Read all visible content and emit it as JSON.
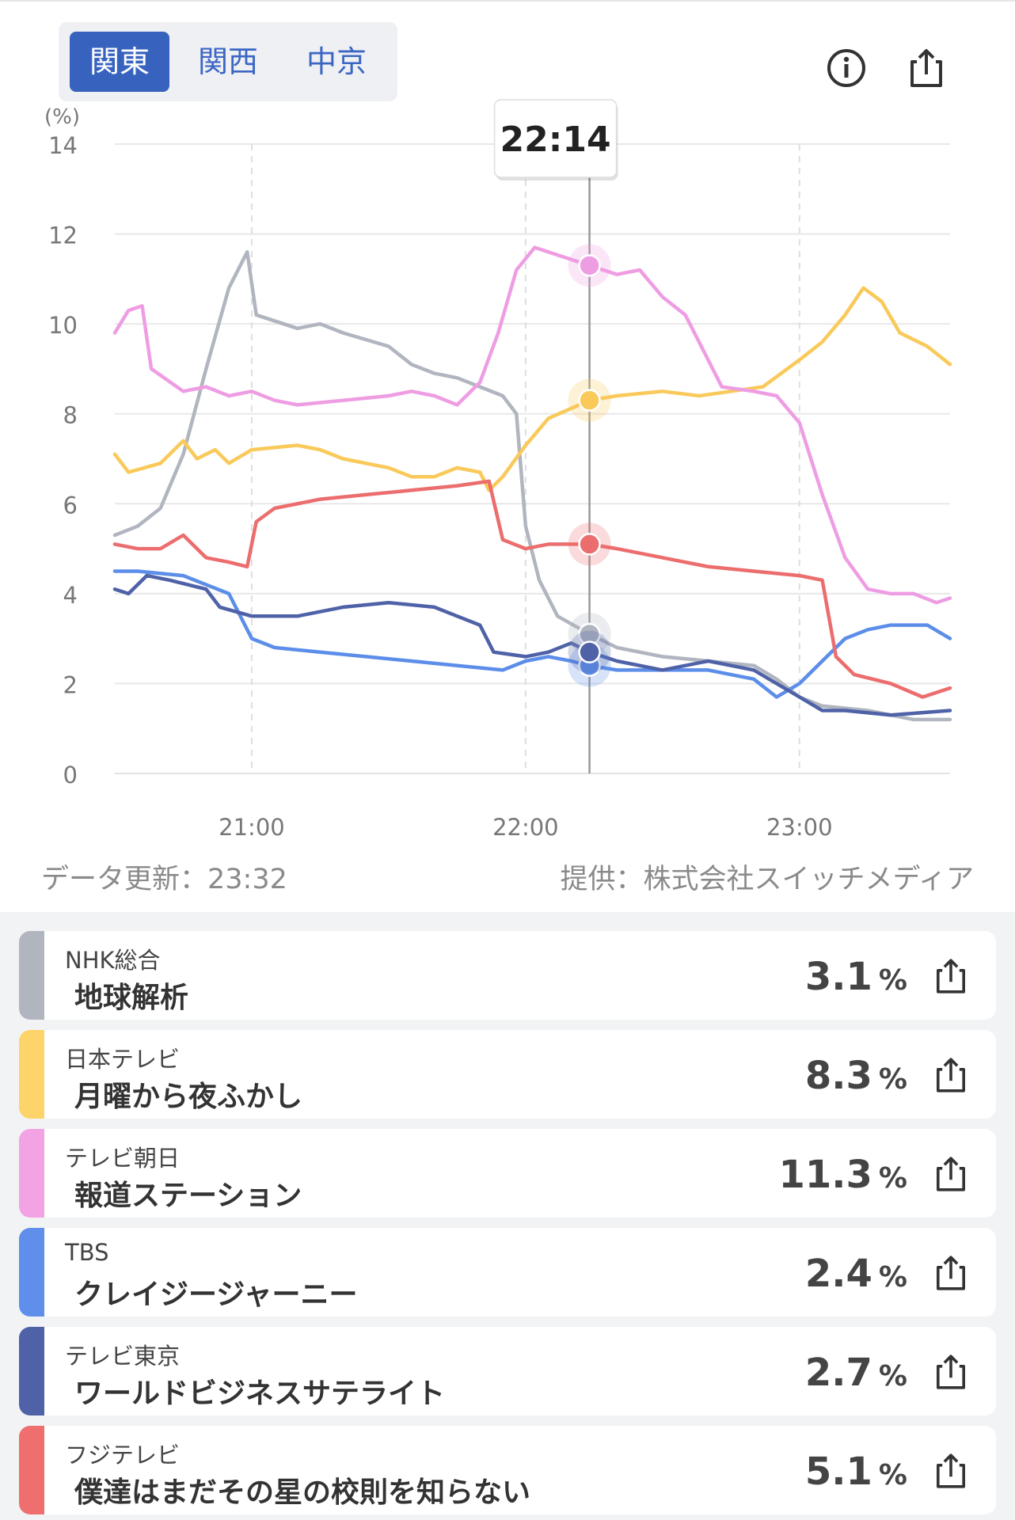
{
  "header": {
    "regions": [
      {
        "label": "関東",
        "active": true
      },
      {
        "label": "関西",
        "active": false
      },
      {
        "label": "中京",
        "active": false
      }
    ],
    "icons": [
      "info-icon",
      "share-icon"
    ]
  },
  "tooltip": {
    "time": "22:14"
  },
  "footer": {
    "update": "データ更新：23:32",
    "source": "提供：株式会社スイッチメディア"
  },
  "chart_data": {
    "type": "line",
    "ylabel": "(%)",
    "ylim": [
      0,
      14
    ],
    "yticks": [
      "0",
      "2",
      "4",
      "6",
      "8",
      "10",
      "12",
      "14"
    ],
    "xlim": [
      "20:30",
      "23:33"
    ],
    "xticks": [
      "21:00",
      "22:00",
      "23:00"
    ],
    "cursor": "22:14",
    "grid": true,
    "series": [
      {
        "name": "NHK総合",
        "color": "#b0b5bf",
        "cursor_value": 3.1,
        "points": [
          [
            "20:30",
            5.3
          ],
          [
            "20:35",
            5.5
          ],
          [
            "20:40",
            5.9
          ],
          [
            "20:45",
            7.1
          ],
          [
            "20:50",
            9.0
          ],
          [
            "20:55",
            10.8
          ],
          [
            "20:59",
            11.6
          ],
          [
            "21:01",
            10.2
          ],
          [
            "21:10",
            9.9
          ],
          [
            "21:15",
            10.0
          ],
          [
            "21:20",
            9.8
          ],
          [
            "21:30",
            9.5
          ],
          [
            "21:35",
            9.1
          ],
          [
            "21:40",
            8.9
          ],
          [
            "21:45",
            8.8
          ],
          [
            "21:50",
            8.6
          ],
          [
            "21:55",
            8.4
          ],
          [
            "21:58",
            8.0
          ],
          [
            "22:00",
            5.5
          ],
          [
            "22:03",
            4.3
          ],
          [
            "22:07",
            3.5
          ],
          [
            "22:14",
            3.1
          ],
          [
            "22:20",
            2.8
          ],
          [
            "22:30",
            2.6
          ],
          [
            "22:40",
            2.5
          ],
          [
            "22:50",
            2.4
          ],
          [
            "22:55",
            2.1
          ],
          [
            "23:00",
            1.7
          ],
          [
            "23:05",
            1.5
          ],
          [
            "23:15",
            1.4
          ],
          [
            "23:25",
            1.2
          ],
          [
            "23:33",
            1.2
          ]
        ]
      },
      {
        "name": "日本テレビ",
        "color": "#f9c95a",
        "cursor_value": 8.3,
        "points": [
          [
            "20:30",
            7.1
          ],
          [
            "20:33",
            6.7
          ],
          [
            "20:40",
            6.9
          ],
          [
            "20:45",
            7.4
          ],
          [
            "20:48",
            7.0
          ],
          [
            "20:52",
            7.2
          ],
          [
            "20:55",
            6.9
          ],
          [
            "21:00",
            7.2
          ],
          [
            "21:10",
            7.3
          ],
          [
            "21:15",
            7.2
          ],
          [
            "21:20",
            7.0
          ],
          [
            "21:30",
            6.8
          ],
          [
            "21:35",
            6.6
          ],
          [
            "21:40",
            6.6
          ],
          [
            "21:45",
            6.8
          ],
          [
            "21:50",
            6.7
          ],
          [
            "21:52",
            6.3
          ],
          [
            "21:55",
            6.6
          ],
          [
            "22:00",
            7.3
          ],
          [
            "22:05",
            7.9
          ],
          [
            "22:14",
            8.3
          ],
          [
            "22:20",
            8.4
          ],
          [
            "22:30",
            8.5
          ],
          [
            "22:38",
            8.4
          ],
          [
            "22:45",
            8.5
          ],
          [
            "22:52",
            8.6
          ],
          [
            "23:00",
            9.2
          ],
          [
            "23:05",
            9.6
          ],
          [
            "23:10",
            10.2
          ],
          [
            "23:14",
            10.8
          ],
          [
            "23:18",
            10.5
          ],
          [
            "23:22",
            9.8
          ],
          [
            "23:28",
            9.5
          ],
          [
            "23:33",
            9.1
          ]
        ]
      },
      {
        "name": "テレビ朝日",
        "color": "#ef9de3",
        "cursor_value": 11.3,
        "points": [
          [
            "20:30",
            9.8
          ],
          [
            "20:33",
            10.3
          ],
          [
            "20:36",
            10.4
          ],
          [
            "20:38",
            9.0
          ],
          [
            "20:45",
            8.5
          ],
          [
            "20:50",
            8.6
          ],
          [
            "20:55",
            8.4
          ],
          [
            "21:00",
            8.5
          ],
          [
            "21:05",
            8.3
          ],
          [
            "21:10",
            8.2
          ],
          [
            "21:20",
            8.3
          ],
          [
            "21:30",
            8.4
          ],
          [
            "21:35",
            8.5
          ],
          [
            "21:40",
            8.4
          ],
          [
            "21:45",
            8.2
          ],
          [
            "21:50",
            8.7
          ],
          [
            "21:54",
            9.8
          ],
          [
            "21:58",
            11.2
          ],
          [
            "22:02",
            11.7
          ],
          [
            "22:08",
            11.5
          ],
          [
            "22:14",
            11.3
          ],
          [
            "22:20",
            11.1
          ],
          [
            "22:25",
            11.2
          ],
          [
            "22:30",
            10.6
          ],
          [
            "22:35",
            10.2
          ],
          [
            "22:38",
            9.6
          ],
          [
            "22:43",
            8.6
          ],
          [
            "22:50",
            8.5
          ],
          [
            "22:55",
            8.4
          ],
          [
            "23:00",
            7.8
          ],
          [
            "23:05",
            6.2
          ],
          [
            "23:10",
            4.8
          ],
          [
            "23:15",
            4.1
          ],
          [
            "23:20",
            4.0
          ],
          [
            "23:25",
            4.0
          ],
          [
            "23:30",
            3.8
          ],
          [
            "23:33",
            3.9
          ]
        ]
      },
      {
        "name": "TBS",
        "color": "#5c8ee9",
        "cursor_value": 2.4,
        "points": [
          [
            "20:30",
            4.5
          ],
          [
            "20:35",
            4.5
          ],
          [
            "20:45",
            4.4
          ],
          [
            "20:55",
            4.0
          ],
          [
            "21:00",
            3.0
          ],
          [
            "21:05",
            2.8
          ],
          [
            "21:15",
            2.7
          ],
          [
            "21:25",
            2.6
          ],
          [
            "21:35",
            2.5
          ],
          [
            "21:45",
            2.4
          ],
          [
            "21:55",
            2.3
          ],
          [
            "22:00",
            2.5
          ],
          [
            "22:05",
            2.6
          ],
          [
            "22:10",
            2.5
          ],
          [
            "22:14",
            2.4
          ],
          [
            "22:20",
            2.3
          ],
          [
            "22:30",
            2.3
          ],
          [
            "22:40",
            2.3
          ],
          [
            "22:50",
            2.1
          ],
          [
            "22:55",
            1.7
          ],
          [
            "23:00",
            2.0
          ],
          [
            "23:05",
            2.5
          ],
          [
            "23:10",
            3.0
          ],
          [
            "23:15",
            3.2
          ],
          [
            "23:20",
            3.3
          ],
          [
            "23:28",
            3.3
          ],
          [
            "23:33",
            3.0
          ]
        ]
      },
      {
        "name": "テレビ東京",
        "color": "#4f62a8",
        "cursor_value": 2.7,
        "points": [
          [
            "20:30",
            4.1
          ],
          [
            "20:33",
            4.0
          ],
          [
            "20:37",
            4.4
          ],
          [
            "20:42",
            4.3
          ],
          [
            "20:50",
            4.1
          ],
          [
            "20:53",
            3.7
          ],
          [
            "21:00",
            3.5
          ],
          [
            "21:10",
            3.5
          ],
          [
            "21:20",
            3.7
          ],
          [
            "21:30",
            3.8
          ],
          [
            "21:40",
            3.7
          ],
          [
            "21:45",
            3.5
          ],
          [
            "21:50",
            3.3
          ],
          [
            "21:53",
            2.7
          ],
          [
            "22:00",
            2.6
          ],
          [
            "22:05",
            2.7
          ],
          [
            "22:10",
            2.9
          ],
          [
            "22:14",
            2.7
          ],
          [
            "22:20",
            2.5
          ],
          [
            "22:30",
            2.3
          ],
          [
            "22:40",
            2.5
          ],
          [
            "22:45",
            2.4
          ],
          [
            "22:50",
            2.3
          ],
          [
            "22:55",
            2.0
          ],
          [
            "23:00",
            1.7
          ],
          [
            "23:05",
            1.4
          ],
          [
            "23:10",
            1.4
          ],
          [
            "23:20",
            1.3
          ],
          [
            "23:33",
            1.4
          ]
        ]
      },
      {
        "name": "フジテレビ",
        "color": "#ec6d6d",
        "cursor_value": 5.1,
        "points": [
          [
            "20:30",
            5.1
          ],
          [
            "20:35",
            5.0
          ],
          [
            "20:40",
            5.0
          ],
          [
            "20:45",
            5.3
          ],
          [
            "20:50",
            4.8
          ],
          [
            "20:55",
            4.7
          ],
          [
            "20:59",
            4.6
          ],
          [
            "21:01",
            5.6
          ],
          [
            "21:05",
            5.9
          ],
          [
            "21:15",
            6.1
          ],
          [
            "21:25",
            6.2
          ],
          [
            "21:35",
            6.3
          ],
          [
            "21:45",
            6.4
          ],
          [
            "21:52",
            6.5
          ],
          [
            "21:55",
            5.2
          ],
          [
            "22:00",
            5.0
          ],
          [
            "22:05",
            5.1
          ],
          [
            "22:14",
            5.1
          ],
          [
            "22:20",
            5.0
          ],
          [
            "22:30",
            4.8
          ],
          [
            "22:40",
            4.6
          ],
          [
            "22:50",
            4.5
          ],
          [
            "23:00",
            4.4
          ],
          [
            "23:05",
            4.3
          ],
          [
            "23:08",
            2.6
          ],
          [
            "23:12",
            2.2
          ],
          [
            "23:20",
            2.0
          ],
          [
            "23:27",
            1.7
          ],
          [
            "23:33",
            1.9
          ]
        ]
      }
    ]
  },
  "channels": [
    {
      "channel": "NHK総合",
      "program": "地球解析",
      "value": "3.1",
      "unit": "%",
      "color": "#b0b5bf"
    },
    {
      "channel": "日本テレビ",
      "program": "月曜から夜ふかし",
      "value": "8.3",
      "unit": "%",
      "color": "#fcd46a"
    },
    {
      "channel": "テレビ朝日",
      "program": "報道ステーション",
      "value": "11.3",
      "unit": "%",
      "color": "#f3a3e4"
    },
    {
      "channel": "TBS",
      "program": "クレイジージャーニー",
      "value": "2.4",
      "unit": "%",
      "color": "#5f8fea"
    },
    {
      "channel": "テレビ東京",
      "program": "ワールドビジネスサテライト",
      "value": "2.7",
      "unit": "%",
      "color": "#4f62a8"
    },
    {
      "channel": "フジテレビ",
      "program": "僕達はまだその星の校則を知らない",
      "value": "5.1",
      "unit": "%",
      "color": "#ef6e6e"
    }
  ]
}
